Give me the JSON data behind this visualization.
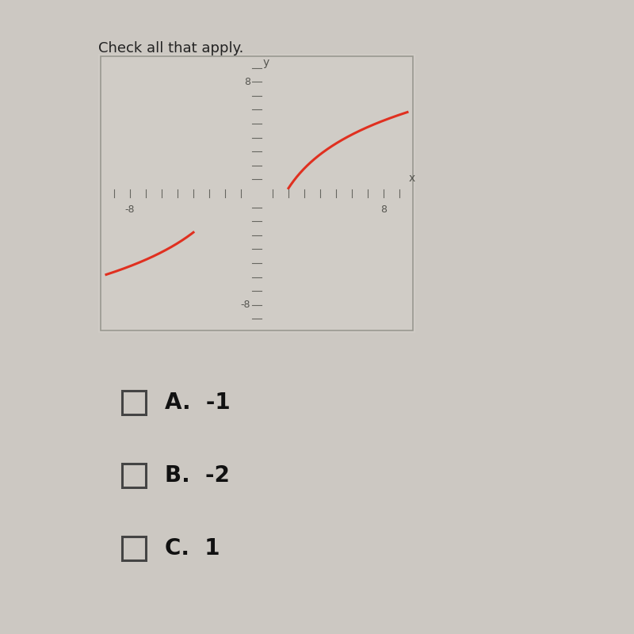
{
  "bg_color": "#ccc8c2",
  "graph_bg_color": "#d0ccc6",
  "curve_color": "#e03020",
  "curve_linewidth": 2.2,
  "xlim": [
    -10,
    10
  ],
  "ylim": [
    -10,
    10
  ],
  "axis_color": "#666660",
  "tick_label_color": "#555550",
  "choices": [
    "A.  -1",
    "B.  -2",
    "C.  1"
  ],
  "choices_fontsize": 20,
  "xlabel": "x",
  "ylabel": "y",
  "header_line1": "Check all that apply.",
  "header_fontsize": 13
}
